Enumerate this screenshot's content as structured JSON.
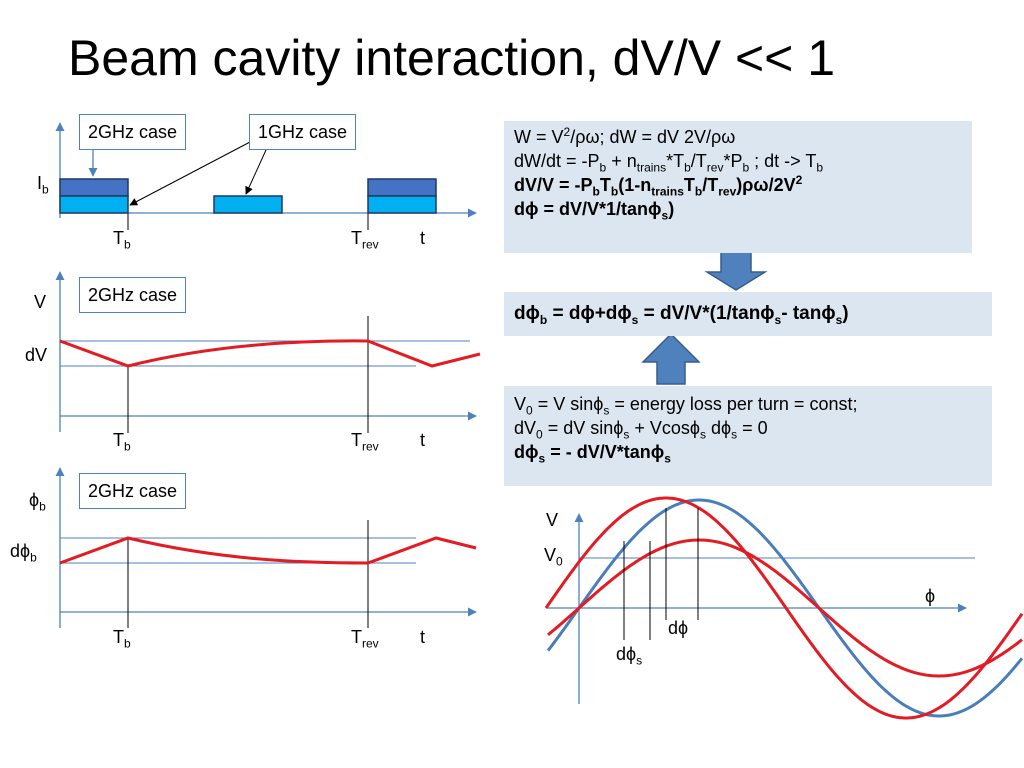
{
  "title": "Beam cavity interaction, dV/V << 1",
  "callouts": {
    "ghz2_top": "2GHz case",
    "ghz1_top": "1GHz case",
    "ghz2_mid": "2GHz case",
    "ghz2_bot": "2GHz case"
  },
  "labels": {
    "ib": "I",
    "ib_sub": "b",
    "t": "T",
    "b": "b",
    "rev": "rev",
    "time": "t",
    "v": "V",
    "dv": "dV",
    "phib": "ϕ",
    "dphib": "dϕ",
    "sine_v": "V",
    "sine_v0": "V",
    "sine_v0_sub": "0",
    "sine_phi": "ϕ",
    "sine_dphi": "dϕ",
    "sine_dphis": "dϕ",
    "sine_s": "s"
  },
  "box1": {
    "l1a": "W = V",
    "l1b": "2",
    "l1c": "/ρω;    dW = dV 2V/ρω",
    "l2a": "dW/dt = -P",
    "l2b": "b",
    "l2c": " + n",
    "l2d": "trains",
    "l2e": "*T",
    "l2f": "b",
    "l2g": "/T",
    "l2h": "rev",
    "l2i": "*P",
    "l2j": "b",
    "l2k": " ;   dt -> T",
    "l2l": "b",
    "l3a": "dV/V = -P",
    "l3b": "b",
    "l3c": "T",
    "l3d": "b",
    "l3e": "(1-n",
    "l3f": "trains",
    "l3g": "T",
    "l3h": "b",
    "l3i": "/T",
    "l3j": "rev",
    "l3k": ")ρω/2V",
    "l3l": "2",
    "l4": "dϕ  = dV/V*1/tanϕ",
    "l4s": "s",
    "l4e": ")"
  },
  "result": {
    "a": "dϕ",
    "b": "b",
    "c": "  = dϕ+dϕ",
    "d": "s",
    "e": " = dV/V*(1/tanϕ",
    "f": "s",
    "g": "- tanϕ",
    "h": "s",
    "i": ")"
  },
  "box2": {
    "l1a": "V",
    "l1b": "0",
    "l1c": " = V sinϕ",
    "l1d": "s",
    "l1e": " = energy loss per turn = const;",
    "l2a": "dV",
    "l2b": "0",
    "l2c": " = dV sinϕ",
    "l2d": "s",
    "l2e": " + Vcosϕ",
    "l2f": "s",
    "l2g": " dϕ",
    "l2h": "s",
    "l2i": " = 0",
    "l3a": "dϕ",
    "l3b": "s",
    "l3c": " = - dV/V*tanϕ",
    "l3d": "s"
  },
  "colors": {
    "axis": "#4f81bd",
    "curve": "#e31b23",
    "bunch_light": "#00b0f0",
    "bunch_dark": "#4472c4",
    "box_fill": "#dce6f1",
    "arrow": "#4f81bd"
  }
}
